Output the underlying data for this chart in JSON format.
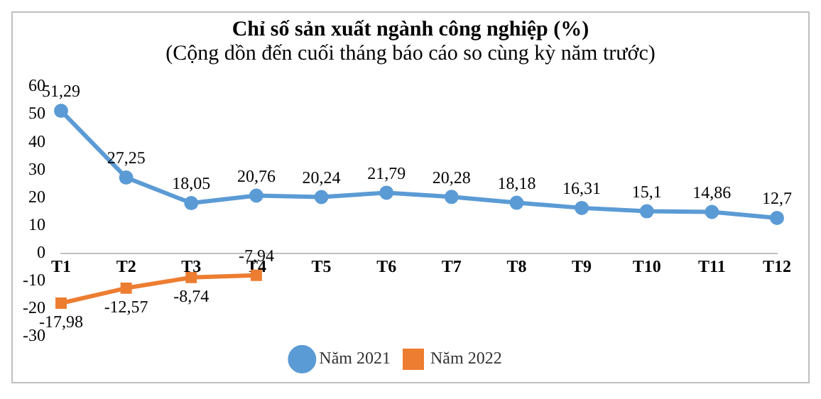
{
  "chart_data": {
    "type": "line",
    "title": "Chỉ số sản xuất ngành công nghiệp (%)",
    "subtitle": "(Cộng dồn đến cuối tháng báo cáo so cùng kỳ năm trước)",
    "categories": [
      "T1",
      "T2",
      "T3",
      "T4",
      "T5",
      "T6",
      "T7",
      "T8",
      "T9",
      "T10",
      "T11",
      "T12"
    ],
    "series": [
      {
        "name": "Năm 2021",
        "color": "#5b9bd5",
        "marker": "circle",
        "values": [
          51.29,
          27.25,
          18.05,
          20.76,
          20.24,
          21.79,
          20.28,
          18.18,
          16.31,
          15.1,
          14.86,
          12.7
        ],
        "value_labels": [
          "51,29",
          "27,25",
          "18,05",
          "20,76",
          "20,24",
          "21,79",
          "20,28",
          "18,18",
          "16,31",
          "15,1",
          "14,86",
          "12,7"
        ]
      },
      {
        "name": "Năm 2022",
        "color": "#ed7d31",
        "marker": "square",
        "values": [
          -17.98,
          -12.57,
          -8.74,
          -7.94,
          null,
          null,
          null,
          null,
          null,
          null,
          null,
          null
        ],
        "value_labels": [
          "-17,98",
          "-12,57",
          "-8,74",
          "-7,94",
          null,
          null,
          null,
          null,
          null,
          null,
          null,
          null
        ]
      }
    ],
    "ylim": [
      -30,
      60
    ],
    "yticks": [
      -30,
      -20,
      -10,
      0,
      10,
      20,
      30,
      40,
      50,
      60
    ],
    "grid": false,
    "legend": "bottom"
  }
}
